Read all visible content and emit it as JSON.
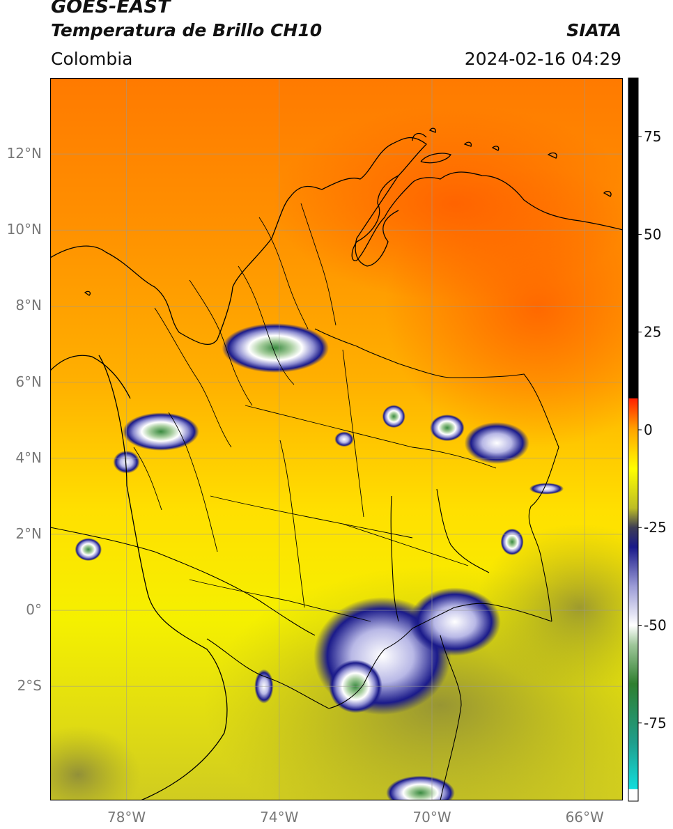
{
  "header": {
    "satellite": "GOES-EAST",
    "product": "Temperatura de Brillo CH10",
    "organization": "SIATA",
    "region": "Colombia",
    "timestamp": "2024-02-16 04:29"
  },
  "map": {
    "lon_range": [
      -80,
      -65
    ],
    "lat_range": [
      -5,
      14
    ],
    "lon_ticks": [
      {
        "value": -78,
        "label": "78°W"
      },
      {
        "value": -74,
        "label": "74°W"
      },
      {
        "value": -70,
        "label": "70°W"
      },
      {
        "value": -66,
        "label": "66°W"
      }
    ],
    "lat_ticks": [
      {
        "value": 12,
        "label": "12°N"
      },
      {
        "value": 10,
        "label": "10°N"
      },
      {
        "value": 8,
        "label": "8°N"
      },
      {
        "value": 6,
        "label": "6°N"
      },
      {
        "value": 4,
        "label": "4°N"
      },
      {
        "value": 2,
        "label": "2°N"
      },
      {
        "value": 0,
        "label": "0°"
      },
      {
        "value": -2,
        "label": "2°S"
      }
    ],
    "gridlines": true
  },
  "colorbar": {
    "range": [
      -95,
      90
    ],
    "ticks": [
      {
        "value": 75,
        "label": "75"
      },
      {
        "value": 50,
        "label": "50"
      },
      {
        "value": 25,
        "label": "25"
      },
      {
        "value": 0,
        "label": "0"
      },
      {
        "value": -25,
        "label": "-25"
      },
      {
        "value": -50,
        "label": "-50"
      },
      {
        "value": -75,
        "label": "-75"
      }
    ],
    "stops": [
      {
        "value": -95,
        "color": "#ffffff"
      },
      {
        "value": -92,
        "color": "#ffffff"
      },
      {
        "value": -91.9,
        "color": "#11dddd"
      },
      {
        "value": -80,
        "color": "#1f9e8c"
      },
      {
        "value": -65,
        "color": "#2f7f2f"
      },
      {
        "value": -55,
        "color": "#9fc79a"
      },
      {
        "value": -50,
        "color": "#ffffff"
      },
      {
        "value": -40,
        "color": "#9b9bd6"
      },
      {
        "value": -30,
        "color": "#1a1a8a"
      },
      {
        "value": -25,
        "color": "#3d3d55"
      },
      {
        "value": -20,
        "color": "#bdbd25"
      },
      {
        "value": -10,
        "color": "#ffff00"
      },
      {
        "value": 0,
        "color": "#ffa500"
      },
      {
        "value": 8,
        "color": "#ff2000"
      },
      {
        "value": 8.1,
        "color": "#000000"
      },
      {
        "value": 90,
        "color": "#000000"
      }
    ]
  },
  "cloud_systems": [
    {
      "lon": -74.1,
      "lat": 6.9,
      "rx": 1.4,
      "ry": 0.65,
      "level": -62
    },
    {
      "lon": -77.1,
      "lat": 4.7,
      "rx": 1.0,
      "ry": 0.5,
      "level": -55
    },
    {
      "lon": -78.0,
      "lat": 3.9,
      "rx": 0.35,
      "ry": 0.3,
      "level": -45
    },
    {
      "lon": -68.3,
      "lat": 4.4,
      "rx": 0.85,
      "ry": 0.55,
      "level": -48
    },
    {
      "lon": -69.6,
      "lat": 4.8,
      "rx": 0.45,
      "ry": 0.35,
      "level": -60
    },
    {
      "lon": -71.0,
      "lat": 5.1,
      "rx": 0.3,
      "ry": 0.3,
      "level": -58
    },
    {
      "lon": -67.0,
      "lat": 3.2,
      "rx": 0.45,
      "ry": 0.15,
      "level": -45
    },
    {
      "lon": -79.0,
      "lat": 1.6,
      "rx": 0.35,
      "ry": 0.3,
      "level": -60
    },
    {
      "lon": -67.9,
      "lat": 1.8,
      "rx": 0.3,
      "ry": 0.35,
      "level": -58
    },
    {
      "lon": -71.3,
      "lat": -1.2,
      "rx": 1.8,
      "ry": 1.55,
      "level": -52
    },
    {
      "lon": -69.4,
      "lat": -0.3,
      "rx": 1.2,
      "ry": 0.9,
      "level": -48
    },
    {
      "lon": -72.0,
      "lat": -2.0,
      "rx": 0.7,
      "ry": 0.7,
      "level": -62
    },
    {
      "lon": -70.3,
      "lat": -4.8,
      "rx": 0.9,
      "ry": 0.45,
      "level": -62
    },
    {
      "lon": -74.4,
      "lat": -2.0,
      "rx": 0.25,
      "ry": 0.45,
      "level": -50
    },
    {
      "lon": -72.3,
      "lat": 4.5,
      "rx": 0.25,
      "ry": 0.2,
      "level": -45
    }
  ]
}
